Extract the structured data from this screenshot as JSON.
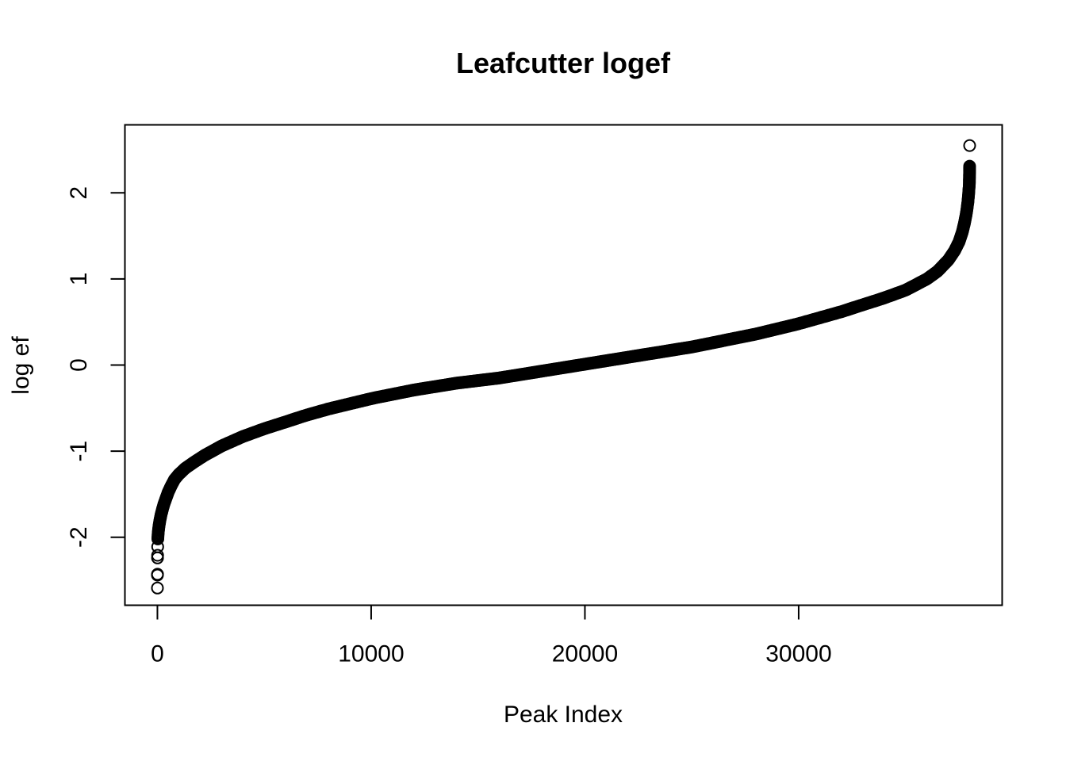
{
  "chart_data": {
    "type": "scatter",
    "title": "Leafcutter logef",
    "xlabel": "Peak Index",
    "ylabel": "log ef",
    "xlim": [
      -1520,
      39520
    ],
    "ylim": [
      -2.79,
      2.79
    ],
    "x_ticks": [
      0,
      10000,
      20000,
      30000
    ],
    "x_tick_labels": [
      "0",
      "10000",
      "20000",
      "30000"
    ],
    "y_ticks": [
      -2,
      -1,
      0,
      1,
      2
    ],
    "y_tick_labels": [
      "-2",
      "-1",
      "0",
      "1",
      "2"
    ],
    "grid": false,
    "marker": "open-circle",
    "color": "#000000",
    "n_points": 38000,
    "points": [
      [
        0,
        -2.59
      ],
      [
        2,
        -2.44
      ],
      [
        4,
        -2.43
      ],
      [
        6,
        -2.24
      ],
      [
        8,
        -2.21
      ],
      [
        12,
        -2.11
      ],
      [
        20,
        -2.02
      ],
      [
        30,
        -1.97
      ],
      [
        50,
        -1.92
      ],
      [
        80,
        -1.86
      ],
      [
        120,
        -1.8
      ],
      [
        170,
        -1.74
      ],
      [
        230,
        -1.68
      ],
      [
        300,
        -1.62
      ],
      [
        400,
        -1.55
      ],
      [
        500,
        -1.48
      ],
      [
        650,
        -1.4
      ],
      [
        800,
        -1.33
      ],
      [
        1000,
        -1.27
      ],
      [
        1300,
        -1.2
      ],
      [
        1700,
        -1.13
      ],
      [
        2200,
        -1.05
      ],
      [
        3000,
        -0.94
      ],
      [
        4000,
        -0.83
      ],
      [
        5000,
        -0.74
      ],
      [
        6000,
        -0.66
      ],
      [
        7000,
        -0.58
      ],
      [
        8000,
        -0.51
      ],
      [
        9000,
        -0.45
      ],
      [
        10000,
        -0.39
      ],
      [
        11000,
        -0.34
      ],
      [
        12000,
        -0.29
      ],
      [
        13000,
        -0.25
      ],
      [
        14000,
        -0.21
      ],
      [
        15000,
        -0.18
      ],
      [
        16000,
        -0.15
      ],
      [
        17000,
        -0.11
      ],
      [
        18000,
        -0.07
      ],
      [
        19000,
        -0.03
      ],
      [
        20000,
        0.01
      ],
      [
        21000,
        0.05
      ],
      [
        22000,
        0.09
      ],
      [
        23000,
        0.13
      ],
      [
        24000,
        0.17
      ],
      [
        25000,
        0.21
      ],
      [
        26000,
        0.26
      ],
      [
        27000,
        0.31
      ],
      [
        28000,
        0.36
      ],
      [
        29000,
        0.42
      ],
      [
        30000,
        0.48
      ],
      [
        31000,
        0.55
      ],
      [
        32000,
        0.62
      ],
      [
        33000,
        0.7
      ],
      [
        34000,
        0.78
      ],
      [
        35000,
        0.87
      ],
      [
        36000,
        1.0
      ],
      [
        36500,
        1.09
      ],
      [
        37000,
        1.22
      ],
      [
        37300,
        1.33
      ],
      [
        37500,
        1.43
      ],
      [
        37650,
        1.54
      ],
      [
        37750,
        1.64
      ],
      [
        37830,
        1.74
      ],
      [
        37880,
        1.82
      ],
      [
        37920,
        1.9
      ],
      [
        37950,
        1.98
      ],
      [
        37970,
        2.05
      ],
      [
        37985,
        2.1
      ],
      [
        37990,
        2.17
      ],
      [
        37994,
        2.24
      ],
      [
        37997,
        2.31
      ],
      [
        38000,
        2.55
      ]
    ]
  }
}
